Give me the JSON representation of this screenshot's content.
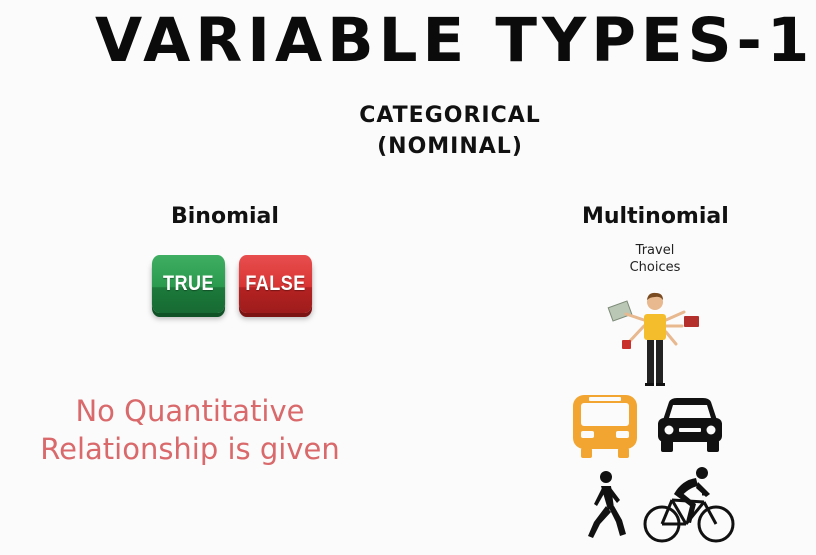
{
  "title": "VARIABLE TYPES-1",
  "subtitle_line1": "CATEGORICAL",
  "subtitle_line2": "(NOMINAL)",
  "binomial": {
    "heading": "Binomial",
    "true_label": "TRUE",
    "false_label": "FALSE"
  },
  "multinomial": {
    "heading": "Multinomial",
    "caption_line1": "Travel",
    "caption_line2": "Choices"
  },
  "note_line1": "No Quantitative",
  "note_line2": "Relationship is given",
  "colors": {
    "note": "#d9696b",
    "true": "#2a9a4e",
    "false": "#d93434",
    "bus": "#f2a531",
    "person_shirt": "#f3bd2c"
  },
  "icons": [
    "person-icon",
    "bus-icon",
    "car-icon",
    "walking-person-icon",
    "cyclist-icon"
  ]
}
